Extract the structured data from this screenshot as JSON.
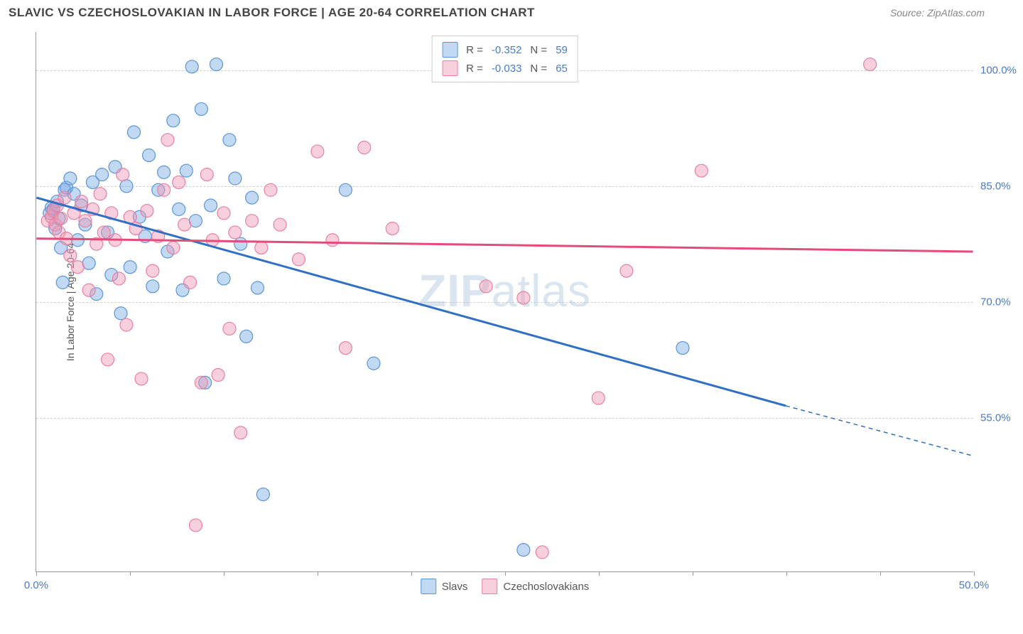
{
  "title": "SLAVIC VS CZECHOSLOVAKIAN IN LABOR FORCE | AGE 20-64 CORRELATION CHART",
  "source": "Source: ZipAtlas.com",
  "watermark_bold": "ZIP",
  "watermark_light": "atlas",
  "y_axis_title": "In Labor Force | Age 20-64",
  "chart": {
    "type": "scatter",
    "xlim": [
      0,
      50
    ],
    "ylim": [
      35,
      105
    ],
    "x_ticks": [
      0,
      5,
      10,
      15,
      20,
      25,
      30,
      35,
      40,
      45,
      50
    ],
    "x_labels_shown": {
      "0": "0.0%",
      "50": "50.0%"
    },
    "y_gridlines": [
      55,
      70,
      85,
      100
    ],
    "y_labels": {
      "55": "55.0%",
      "70": "70.0%",
      "85": "85.0%",
      "100": "100.0%"
    },
    "background_color": "#ffffff",
    "grid_color": "#d0d0d0",
    "series": [
      {
        "name": "Slavs",
        "color_fill": "rgba(120,170,230,0.45)",
        "color_stroke": "#5a95d8",
        "marker_radius": 9,
        "R": "-0.352",
        "N": "59",
        "trend": {
          "x1": 0,
          "y1": 83.5,
          "x2": 40,
          "y2": 56.5,
          "x2_dash": 50,
          "y2_dash": 50,
          "color": "#2f6fc5",
          "width": 3
        },
        "points": [
          [
            0.7,
            81.5
          ],
          [
            0.8,
            82.2
          ],
          [
            0.9,
            82.0
          ],
          [
            1.0,
            79.5
          ],
          [
            1.1,
            83.0
          ],
          [
            1.2,
            80.8
          ],
          [
            1.3,
            77.0
          ],
          [
            1.4,
            72.5
          ],
          [
            1.5,
            84.5
          ],
          [
            1.6,
            84.8
          ],
          [
            1.8,
            86.0
          ],
          [
            2.0,
            84.0
          ],
          [
            2.2,
            78.0
          ],
          [
            2.4,
            82.5
          ],
          [
            2.6,
            80.0
          ],
          [
            2.8,
            75.0
          ],
          [
            3.0,
            85.5
          ],
          [
            3.2,
            71.0
          ],
          [
            3.5,
            86.5
          ],
          [
            3.8,
            79.0
          ],
          [
            4.0,
            73.5
          ],
          [
            4.2,
            87.5
          ],
          [
            4.5,
            68.5
          ],
          [
            4.8,
            85.0
          ],
          [
            5.0,
            74.5
          ],
          [
            5.2,
            92.0
          ],
          [
            5.5,
            81.0
          ],
          [
            5.8,
            78.5
          ],
          [
            6.0,
            89.0
          ],
          [
            6.2,
            72.0
          ],
          [
            6.5,
            84.5
          ],
          [
            6.8,
            86.8
          ],
          [
            7.0,
            76.5
          ],
          [
            7.3,
            93.5
          ],
          [
            7.6,
            82.0
          ],
          [
            7.8,
            71.5
          ],
          [
            8.0,
            87.0
          ],
          [
            8.3,
            100.5
          ],
          [
            8.5,
            80.5
          ],
          [
            8.8,
            95.0
          ],
          [
            9.0,
            59.5
          ],
          [
            9.3,
            82.5
          ],
          [
            9.6,
            100.8
          ],
          [
            10.0,
            73.0
          ],
          [
            10.3,
            91.0
          ],
          [
            10.6,
            86.0
          ],
          [
            10.9,
            77.5
          ],
          [
            11.2,
            65.5
          ],
          [
            11.5,
            83.5
          ],
          [
            11.8,
            71.8
          ],
          [
            12.1,
            45.0
          ],
          [
            16.5,
            84.5
          ],
          [
            18.0,
            62.0
          ],
          [
            26.0,
            37.8
          ],
          [
            34.5,
            64.0
          ]
        ]
      },
      {
        "name": "Czechoslovakians",
        "color_fill": "rgba(240,150,180,0.45)",
        "color_stroke": "#e8809f",
        "marker_radius": 9,
        "R": "-0.033",
        "N": "65",
        "trend": {
          "x1": 0,
          "y1": 78.2,
          "x2": 50,
          "y2": 76.5,
          "color": "#e54b7a",
          "width": 3
        },
        "points": [
          [
            0.6,
            80.5
          ],
          [
            0.8,
            81.0
          ],
          [
            0.9,
            81.8
          ],
          [
            1.0,
            80.0
          ],
          [
            1.1,
            82.5
          ],
          [
            1.2,
            79.0
          ],
          [
            1.3,
            80.8
          ],
          [
            1.5,
            83.5
          ],
          [
            1.6,
            78.2
          ],
          [
            1.8,
            76.0
          ],
          [
            2.0,
            81.5
          ],
          [
            2.2,
            74.5
          ],
          [
            2.4,
            83.0
          ],
          [
            2.6,
            80.5
          ],
          [
            2.8,
            71.5
          ],
          [
            3.0,
            82.0
          ],
          [
            3.2,
            77.5
          ],
          [
            3.4,
            84.0
          ],
          [
            3.6,
            79.0
          ],
          [
            3.8,
            62.5
          ],
          [
            4.0,
            81.5
          ],
          [
            4.2,
            78.0
          ],
          [
            4.4,
            73.0
          ],
          [
            4.6,
            86.5
          ],
          [
            4.8,
            67.0
          ],
          [
            5.0,
            81.0
          ],
          [
            5.3,
            79.5
          ],
          [
            5.6,
            60.0
          ],
          [
            5.9,
            81.8
          ],
          [
            6.2,
            74.0
          ],
          [
            6.5,
            78.5
          ],
          [
            6.8,
            84.5
          ],
          [
            7.0,
            91.0
          ],
          [
            7.3,
            77.0
          ],
          [
            7.6,
            85.5
          ],
          [
            7.9,
            80.0
          ],
          [
            8.2,
            72.5
          ],
          [
            8.5,
            41.0
          ],
          [
            8.8,
            59.5
          ],
          [
            9.1,
            86.5
          ],
          [
            9.4,
            78.0
          ],
          [
            9.7,
            60.5
          ],
          [
            10.0,
            81.5
          ],
          [
            10.3,
            66.5
          ],
          [
            10.6,
            79.0
          ],
          [
            10.9,
            53.0
          ],
          [
            11.5,
            80.5
          ],
          [
            12.0,
            77.0
          ],
          [
            12.5,
            84.5
          ],
          [
            13.0,
            80.0
          ],
          [
            14.0,
            75.5
          ],
          [
            15.0,
            89.5
          ],
          [
            15.8,
            78.0
          ],
          [
            16.5,
            64.0
          ],
          [
            17.5,
            90.0
          ],
          [
            19.0,
            79.5
          ],
          [
            24.0,
            72.0
          ],
          [
            26.0,
            70.5
          ],
          [
            27.0,
            37.5
          ],
          [
            30.0,
            57.5
          ],
          [
            31.5,
            74.0
          ],
          [
            35.5,
            87.0
          ],
          [
            44.5,
            100.8
          ]
        ]
      }
    ],
    "legend_top": [
      {
        "swatch": "swatch-blue",
        "r_label": "R =",
        "r_val": "-0.352",
        "n_label": "N =",
        "n_val": "59"
      },
      {
        "swatch": "swatch-pink",
        "r_label": "R =",
        "r_val": "-0.033",
        "n_label": "N =",
        "n_val": "65"
      }
    ],
    "legend_bottom": [
      {
        "swatch": "swatch-blue",
        "label": "Slavs"
      },
      {
        "swatch": "swatch-pink",
        "label": "Czechoslovakians"
      }
    ]
  }
}
